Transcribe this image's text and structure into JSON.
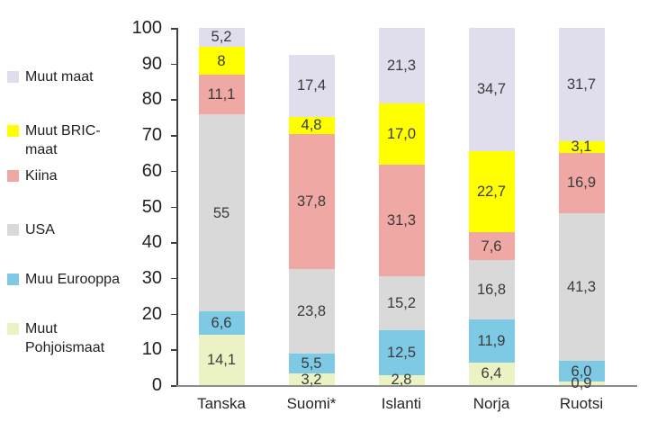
{
  "chart_data": {
    "type": "bar",
    "stacked": true,
    "title": "",
    "xlabel": "",
    "ylabel": "",
    "categories": [
      "Tanska",
      "Suomi*",
      "Islanti",
      "Norja",
      "Ruotsi"
    ],
    "series": [
      {
        "name": "Muut Pohjoismaat",
        "color": "#EBF3C5",
        "values": [
          14.1,
          3.2,
          2.8,
          6.4,
          0.9
        ],
        "labels": [
          "14,1",
          "3,2",
          "2,8",
          "6,4",
          "0,9"
        ]
      },
      {
        "name": "Muu Eurooppa",
        "color": "#7EC9E4",
        "values": [
          6.6,
          5.5,
          12.5,
          11.9,
          6.0
        ],
        "labels": [
          "6,6",
          "5,5",
          "12,5",
          "11,9",
          "6,0"
        ]
      },
      {
        "name": "USA",
        "color": "#D9D9D9",
        "values": [
          55,
          23.8,
          15.2,
          16.8,
          41.3
        ],
        "labels": [
          "55",
          "23,8",
          "15,2",
          "16,8",
          "41,3"
        ]
      },
      {
        "name": "Kiina",
        "color": "#EFA8A3",
        "values": [
          11.1,
          37.8,
          31.3,
          7.6,
          16.9
        ],
        "labels": [
          "11,1",
          "37,8",
          "31,3",
          "7,6",
          "16,9"
        ]
      },
      {
        "name": "Muut BRIC-maat",
        "color": "#FFFF00",
        "values": [
          8,
          4.8,
          17.0,
          22.7,
          3.1
        ],
        "labels": [
          "8",
          "4,8",
          "17,0",
          "22,7",
          "3,1"
        ]
      },
      {
        "name": "Muut maat",
        "color": "#E0DDEC",
        "values": [
          5.2,
          17.4,
          21.3,
          34.7,
          31.7
        ],
        "labels": [
          "5,2",
          "17,4",
          "21,3",
          "34,7",
          "31,7"
        ]
      }
    ],
    "y_axis": {
      "min": 0,
      "max": 100,
      "step": 10,
      "ticks": [
        "0",
        "10",
        "20",
        "30",
        "40",
        "50",
        "60",
        "70",
        "80",
        "90",
        "100"
      ]
    },
    "legend": {
      "position": "left",
      "items": [
        {
          "label": "Muut maat",
          "color": "#E0DDEC"
        },
        {
          "label": "Muut BRIC-maat",
          "color": "#FFFF00"
        },
        {
          "label": "Kiina",
          "color": "#EFA8A3"
        },
        {
          "label": "USA",
          "color": "#D9D9D9"
        },
        {
          "label": "Muu Eurooppa",
          "color": "#7EC9E4"
        },
        {
          "label": "Muut Pohjoismaat",
          "color": "#EBF3C5"
        }
      ]
    },
    "grid": false
  }
}
